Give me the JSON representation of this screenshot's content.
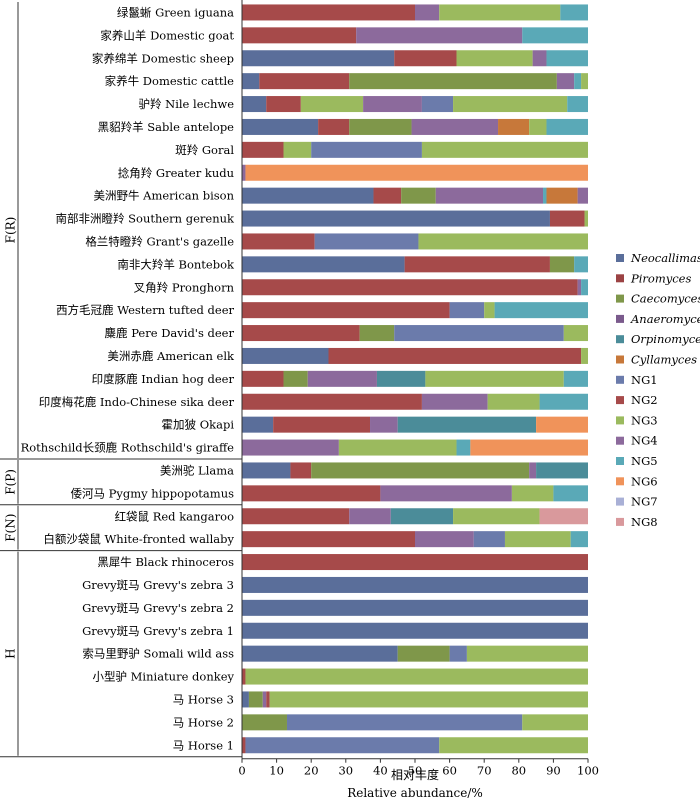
{
  "chart_data": {
    "type": "bar",
    "orientation": "horizontal",
    "stacked": true,
    "xlabel_cn": "相对丰度",
    "xlabel_en": "Relative abundance/%",
    "xlim": [
      0,
      100
    ],
    "xticks": [
      0,
      10,
      20,
      30,
      40,
      50,
      60,
      70,
      80,
      90,
      100
    ],
    "grid": false,
    "legend_position": "right",
    "series": [
      {
        "name": "Neocallimastix",
        "italic": true,
        "color": "#5a6e9a"
      },
      {
        "name": "Piromyces",
        "italic": true,
        "color": "#9b4244"
      },
      {
        "name": "Caecomyces",
        "italic": true,
        "color": "#7f974a"
      },
      {
        "name": "Anaeromyces",
        "italic": true,
        "color": "#7a5a8c"
      },
      {
        "name": "Orpinomyces",
        "italic": true,
        "color": "#4b8c99"
      },
      {
        "name": "Cyllamyces",
        "italic": true,
        "color": "#c7783a"
      },
      {
        "name": "NG1",
        "italic": false,
        "color": "#6b7bab"
      },
      {
        "name": "NG2",
        "italic": false,
        "color": "#a64a4a"
      },
      {
        "name": "NG3",
        "italic": false,
        "color": "#9bba5e"
      },
      {
        "name": "NG4",
        "italic": false,
        "color": "#8c6a9c"
      },
      {
        "name": "NG5",
        "italic": false,
        "color": "#5aa9b7"
      },
      {
        "name": "NG6",
        "italic": false,
        "color": "#f0935a"
      },
      {
        "name": "NG7",
        "italic": false,
        "color": "#a9b0d6"
      },
      {
        "name": "NG8",
        "italic": false,
        "color": "#d9999c"
      }
    ],
    "groups": [
      {
        "name": "F(R)",
        "start": 0,
        "end": 19
      },
      {
        "name": "F(P)",
        "start": 20,
        "end": 21
      },
      {
        "name": "F(N)",
        "start": 22,
        "end": 23
      },
      {
        "name": "H",
        "start": 24,
        "end": 32
      }
    ],
    "categories": [
      {
        "label": "绿鬣蜥 Green iguana",
        "segments": [
          [
            "NG2",
            50
          ],
          [
            "NG4",
            7
          ],
          [
            "NG3",
            35
          ],
          [
            "NG5",
            8
          ]
        ]
      },
      {
        "label": "家养山羊 Domestic goat",
        "segments": [
          [
            "NG2",
            33
          ],
          [
            "NG4",
            48
          ],
          [
            "NG5",
            19
          ]
        ]
      },
      {
        "label": "家养绵羊 Domestic sheep",
        "segments": [
          [
            "Neocallimastix",
            44
          ],
          [
            "NG2",
            18
          ],
          [
            "NG3",
            22
          ],
          [
            "NG4",
            4
          ],
          [
            "NG5",
            12
          ]
        ]
      },
      {
        "label": "家养牛 Domestic cattle",
        "segments": [
          [
            "Neocallimastix",
            5
          ],
          [
            "NG2",
            26
          ],
          [
            "Caecomyces",
            60
          ],
          [
            "NG4",
            5
          ],
          [
            "NG5",
            2
          ],
          [
            "NG3",
            2
          ]
        ]
      },
      {
        "label": "驴羚 Nile lechwe",
        "segments": [
          [
            "Neocallimastix",
            7
          ],
          [
            "NG2",
            10
          ],
          [
            "NG3",
            18
          ],
          [
            "NG4",
            17
          ],
          [
            "NG1",
            9
          ],
          [
            "NG3",
            33
          ],
          [
            "NG5",
            6
          ]
        ]
      },
      {
        "label": "黑貂羚羊 Sable antelope",
        "segments": [
          [
            "Neocallimastix",
            22
          ],
          [
            "NG2",
            9
          ],
          [
            "Caecomyces",
            18
          ],
          [
            "NG4",
            25
          ],
          [
            "Cyllamyces",
            9
          ],
          [
            "NG3",
            5
          ],
          [
            "NG5",
            12
          ]
        ]
      },
      {
        "label": "斑羚 Goral",
        "segments": [
          [
            "NG2",
            12
          ],
          [
            "NG3",
            8
          ],
          [
            "NG1",
            32
          ],
          [
            "NG3",
            48
          ]
        ]
      },
      {
        "label": "捻角羚 Greater kudu",
        "segments": [
          [
            "NG4",
            1
          ],
          [
            "NG6",
            99
          ]
        ]
      },
      {
        "label": "美洲野牛 American bison",
        "segments": [
          [
            "Neocallimastix",
            38
          ],
          [
            "NG2",
            8
          ],
          [
            "Caecomyces",
            10
          ],
          [
            "NG4",
            31
          ],
          [
            "NG5",
            1
          ],
          [
            "Cyllamyces",
            9
          ],
          [
            "NG4",
            3
          ]
        ]
      },
      {
        "label": "南部非洲瞪羚 Southern gerenuk",
        "segments": [
          [
            "Neocallimastix",
            89
          ],
          [
            "NG2",
            10
          ],
          [
            "NG3",
            1
          ]
        ]
      },
      {
        "label": "格兰特瞪羚 Grant's gazelle",
        "segments": [
          [
            "NG2",
            21
          ],
          [
            "NG1",
            30
          ],
          [
            "NG3",
            49
          ]
        ]
      },
      {
        "label": "南非大羚羊 Bontebok",
        "segments": [
          [
            "Neocallimastix",
            47
          ],
          [
            "NG2",
            42
          ],
          [
            "Caecomyces",
            7
          ],
          [
            "NG5",
            4
          ]
        ]
      },
      {
        "label": "叉角羚 Pronghorn",
        "segments": [
          [
            "NG2",
            97
          ],
          [
            "NG4",
            1
          ],
          [
            "NG5",
            2
          ]
        ]
      },
      {
        "label": "西方毛冠鹿 Western tufted deer",
        "segments": [
          [
            "NG2",
            60
          ],
          [
            "NG1",
            10
          ],
          [
            "NG3",
            3
          ],
          [
            "NG5",
            27
          ]
        ]
      },
      {
        "label": "麋鹿 Pere David's deer",
        "segments": [
          [
            "NG2",
            34
          ],
          [
            "Caecomyces",
            10
          ],
          [
            "NG1",
            49
          ],
          [
            "NG3",
            7
          ]
        ]
      },
      {
        "label": "美洲赤鹿 American elk",
        "segments": [
          [
            "Neocallimastix",
            25
          ],
          [
            "NG2",
            73
          ],
          [
            "NG3",
            2
          ]
        ]
      },
      {
        "label": "印度豚鹿 Indian hog deer",
        "segments": [
          [
            "NG2",
            12
          ],
          [
            "Caecomyces",
            7
          ],
          [
            "NG4",
            20
          ],
          [
            "Orpinomyces",
            14
          ],
          [
            "NG3",
            40
          ],
          [
            "NG5",
            7
          ]
        ]
      },
      {
        "label": "印度梅花鹿 Indo-Chinese sika deer",
        "segments": [
          [
            "NG2",
            52
          ],
          [
            "NG4",
            19
          ],
          [
            "NG3",
            15
          ],
          [
            "NG5",
            14
          ]
        ]
      },
      {
        "label": "霍加狓 Okapi",
        "segments": [
          [
            "Neocallimastix",
            9
          ],
          [
            "NG2",
            28
          ],
          [
            "NG4",
            8
          ],
          [
            "Orpinomyces",
            40
          ],
          [
            "NG6",
            15
          ]
        ]
      },
      {
        "label": "Rothschild长颈鹿 Rothschild's giraffe",
        "segments": [
          [
            "NG4",
            28
          ],
          [
            "NG3",
            34
          ],
          [
            "NG5",
            4
          ],
          [
            "NG6",
            34
          ]
        ]
      },
      {
        "label": "美洲驼 Llama",
        "segments": [
          [
            "Neocallimastix",
            14
          ],
          [
            "NG2",
            6
          ],
          [
            "Caecomyces",
            63
          ],
          [
            "NG4",
            2
          ],
          [
            "Orpinomyces",
            15
          ]
        ]
      },
      {
        "label": "倭河马 Pygmy hippopotamus",
        "segments": [
          [
            "NG2",
            40
          ],
          [
            "NG4",
            38
          ],
          [
            "NG3",
            12
          ],
          [
            "NG5",
            10
          ]
        ]
      },
      {
        "label": "红袋鼠 Red kangaroo",
        "segments": [
          [
            "NG2",
            31
          ],
          [
            "NG4",
            12
          ],
          [
            "Orpinomyces",
            18
          ],
          [
            "NG3",
            25
          ],
          [
            "NG8",
            14
          ]
        ]
      },
      {
        "label": "白额沙袋鼠 White-fronted wallaby",
        "segments": [
          [
            "NG2",
            50
          ],
          [
            "NG4",
            17
          ],
          [
            "NG1",
            9
          ],
          [
            "NG3",
            19
          ],
          [
            "NG5",
            5
          ]
        ]
      },
      {
        "label": "黑犀牛 Black rhinoceros",
        "segments": [
          [
            "NG2",
            100
          ]
        ]
      },
      {
        "label": "Grevy斑马 Grevy's zebra 3",
        "segments": [
          [
            "Neocallimastix",
            100
          ]
        ]
      },
      {
        "label": "Grevy斑马 Grevy's zebra 2",
        "segments": [
          [
            "Neocallimastix",
            100
          ]
        ]
      },
      {
        "label": "Grevy斑马 Grevy's zebra 1",
        "segments": [
          [
            "Neocallimastix",
            100
          ]
        ]
      },
      {
        "label": "索马里野驴 Somali wild ass",
        "segments": [
          [
            "Neocallimastix",
            45
          ],
          [
            "Caecomyces",
            15
          ],
          [
            "NG1",
            5
          ],
          [
            "NG3",
            35
          ]
        ]
      },
      {
        "label": "小型驴 Miniature donkey",
        "segments": [
          [
            "NG2",
            1
          ],
          [
            "NG3",
            99
          ]
        ]
      },
      {
        "label": "马 Horse 3",
        "segments": [
          [
            "Neocallimastix",
            2
          ],
          [
            "Caecomyces",
            4
          ],
          [
            "NG4",
            1
          ],
          [
            "NG2",
            1
          ],
          [
            "NG3",
            92
          ]
        ]
      },
      {
        "label": "马 Horse 2",
        "segments": [
          [
            "Caecomyces",
            13
          ],
          [
            "NG1",
            68
          ],
          [
            "NG3",
            19
          ]
        ]
      },
      {
        "label": "马 Horse 1",
        "segments": [
          [
            "NG2",
            1
          ],
          [
            "NG1",
            56
          ],
          [
            "NG3",
            43
          ]
        ]
      }
    ]
  }
}
